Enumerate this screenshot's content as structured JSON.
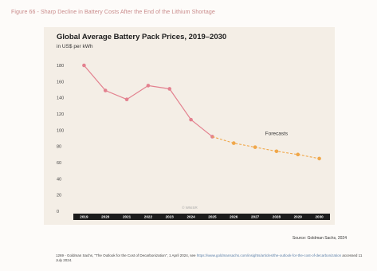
{
  "figure_caption": "Figure 66 - Sharp Decline in Battery Costs After the End of the Lithium Shortage",
  "source": "Source: Goldman Sachs, 2024",
  "footnote": {
    "text": "1269 - Goldman Sachs, \"The Outlook for the Cost of Decarbonization\", 1 April 2024, see ",
    "link": "https://www.goldmansachs.com/insights/articles/the-outlook-for-the-cost-of-decarbonization",
    "tail": " accessed 11 July 2024."
  },
  "watermark": "© WNISR",
  "colors": {
    "actual": "#e3818f",
    "forecast": "#f0a74a",
    "axis_bar": "#1c1c1c",
    "background": "#f4eee6"
  },
  "chart_data": {
    "type": "line",
    "title": "Global Average Battery Pack Prices, 2019–2030",
    "ylabel": "in US$ per kWh",
    "xlabel": "",
    "categories": [
      "2019",
      "2020",
      "2021",
      "2022",
      "2023",
      "2024",
      "2025",
      "2026",
      "2027",
      "2028",
      "2029",
      "2030"
    ],
    "ylim": [
      0,
      180
    ],
    "yticks": [
      0,
      20,
      40,
      60,
      80,
      100,
      120,
      140,
      160,
      180
    ],
    "grid": false,
    "series": [
      {
        "name": "",
        "style": "solid",
        "x": [
          "2019",
          "2020",
          "2021",
          "2022",
          "2023",
          "2024",
          "2025"
        ],
        "values": [
          180,
          149,
          138,
          155,
          151,
          113,
          92
        ]
      },
      {
        "name": "",
        "style": "dashed",
        "x": [
          "2025",
          "2026",
          "2027",
          "2028",
          "2029",
          "2030"
        ],
        "values": [
          92,
          84,
          79,
          74,
          70,
          65
        ]
      }
    ],
    "annotations": [
      {
        "text": "Forecasts",
        "x": "2028",
        "y": 92
      }
    ]
  }
}
